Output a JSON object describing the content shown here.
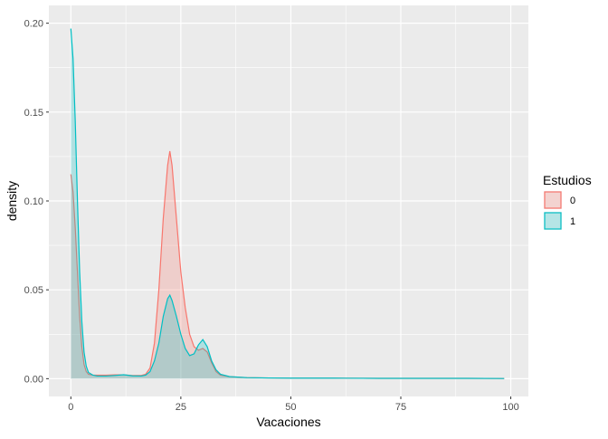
{
  "chart_data": {
    "type": "area",
    "subtype": "density",
    "xlabel": "Vacaciones",
    "ylabel": "density",
    "xlim": [
      -5,
      104
    ],
    "ylim": [
      -0.01,
      0.21
    ],
    "xticks": [
      0,
      25,
      50,
      75,
      100
    ],
    "xtick_labels": [
      "0",
      "25",
      "50",
      "75",
      "100"
    ],
    "yticks": [
      0.0,
      0.05,
      0.1,
      0.15,
      0.2
    ],
    "ytick_labels": [
      "0.00",
      "0.05",
      "0.10",
      "0.15",
      "0.20"
    ],
    "grid": true,
    "legend": {
      "title": "Estudios",
      "placement": "right"
    },
    "series": [
      {
        "name": "0",
        "color": "#F8766D",
        "fill": "#F8766D",
        "fill_opacity": 0.25,
        "points": [
          [
            0,
            0.115
          ],
          [
            0.5,
            0.105
          ],
          [
            1,
            0.085
          ],
          [
            1.5,
            0.06
          ],
          [
            2,
            0.035
          ],
          [
            2.5,
            0.018
          ],
          [
            3,
            0.008
          ],
          [
            3.5,
            0.004
          ],
          [
            4,
            0.0025
          ],
          [
            5,
            0.002
          ],
          [
            6,
            0.002
          ],
          [
            8,
            0.002
          ],
          [
            10,
            0.0022
          ],
          [
            12,
            0.0022
          ],
          [
            14,
            0.0018
          ],
          [
            16,
            0.0018
          ],
          [
            17,
            0.0025
          ],
          [
            18,
            0.006
          ],
          [
            19,
            0.02
          ],
          [
            20,
            0.05
          ],
          [
            21,
            0.09
          ],
          [
            22,
            0.12
          ],
          [
            22.5,
            0.128
          ],
          [
            23,
            0.12
          ],
          [
            24,
            0.09
          ],
          [
            25,
            0.06
          ],
          [
            26,
            0.04
          ],
          [
            27,
            0.025
          ],
          [
            28,
            0.018
          ],
          [
            29,
            0.016
          ],
          [
            30,
            0.017
          ],
          [
            31,
            0.015
          ],
          [
            32,
            0.009
          ],
          [
            33,
            0.004
          ],
          [
            34,
            0.002
          ],
          [
            36,
            0.0012
          ],
          [
            40,
            0.0006
          ],
          [
            45,
            0.0004
          ],
          [
            50,
            0.0003
          ],
          [
            60,
            0.0003
          ],
          [
            70,
            0.0002
          ],
          [
            80,
            0.0002
          ],
          [
            90,
            0.0002
          ],
          [
            98.5,
            0.0001
          ]
        ]
      },
      {
        "name": "1",
        "color": "#00BFC4",
        "fill": "#00BFC4",
        "fill_opacity": 0.25,
        "points": [
          [
            0,
            0.197
          ],
          [
            0.5,
            0.18
          ],
          [
            1,
            0.145
          ],
          [
            1.5,
            0.1
          ],
          [
            2,
            0.06
          ],
          [
            2.5,
            0.032
          ],
          [
            3,
            0.015
          ],
          [
            3.5,
            0.007
          ],
          [
            4,
            0.0035
          ],
          [
            5,
            0.002
          ],
          [
            6,
            0.0015
          ],
          [
            8,
            0.0015
          ],
          [
            10,
            0.0018
          ],
          [
            12,
            0.0022
          ],
          [
            14,
            0.0016
          ],
          [
            16,
            0.0015
          ],
          [
            17,
            0.002
          ],
          [
            18,
            0.004
          ],
          [
            19,
            0.01
          ],
          [
            20,
            0.02
          ],
          [
            21,
            0.035
          ],
          [
            22,
            0.045
          ],
          [
            22.5,
            0.047
          ],
          [
            23,
            0.044
          ],
          [
            24,
            0.035
          ],
          [
            25,
            0.025
          ],
          [
            26,
            0.017
          ],
          [
            27,
            0.013
          ],
          [
            28,
            0.014
          ],
          [
            29,
            0.019
          ],
          [
            30,
            0.022
          ],
          [
            31,
            0.018
          ],
          [
            32,
            0.01
          ],
          [
            33,
            0.005
          ],
          [
            34,
            0.0025
          ],
          [
            36,
            0.0012
          ],
          [
            40,
            0.0006
          ],
          [
            45,
            0.0004
          ],
          [
            50,
            0.0003
          ],
          [
            60,
            0.0003
          ],
          [
            70,
            0.0002
          ],
          [
            80,
            0.0002
          ],
          [
            90,
            0.0002
          ],
          [
            98.5,
            0.0001
          ]
        ]
      }
    ]
  }
}
